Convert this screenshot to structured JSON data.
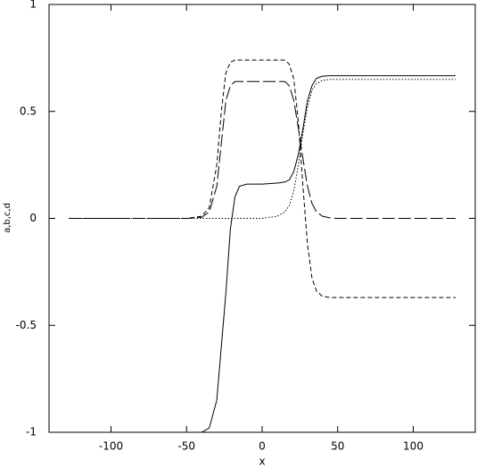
{
  "chart_data": {
    "type": "line",
    "xlabel": "x",
    "ylabel": "a,b,c,d",
    "x": [
      -128,
      -100,
      -70,
      -50,
      -40,
      -35,
      -30,
      -27,
      -24,
      -21,
      -18,
      -15,
      -10,
      0,
      10,
      15,
      18,
      21,
      24,
      27,
      30,
      33,
      36,
      40,
      45,
      50,
      70,
      100,
      128
    ],
    "series": [
      {
        "color": "#000000",
        "dash": "solid",
        "values": [
          -1,
          -1,
          -1,
          -1,
          -1,
          -0.98,
          -0.85,
          -0.6,
          -0.35,
          -0.05,
          0.1,
          0.15,
          0.16,
          0.16,
          0.165,
          0.17,
          0.18,
          0.22,
          0.3,
          0.42,
          0.55,
          0.62,
          0.655,
          0.665,
          0.667,
          0.667,
          0.667,
          0.667,
          0.667
        ]
      },
      {
        "color": "#000000",
        "dash": "short-dash",
        "values": [
          0,
          0,
          0,
          0,
          0.01,
          0.05,
          0.25,
          0.5,
          0.68,
          0.73,
          0.74,
          0.74,
          0.74,
          0.74,
          0.74,
          0.74,
          0.72,
          0.65,
          0.45,
          0.15,
          -0.12,
          -0.28,
          -0.34,
          -0.365,
          -0.37,
          -0.37,
          -0.37,
          -0.37,
          -0.37
        ]
      },
      {
        "color": "#000000",
        "dash": "long-dash",
        "values": [
          0,
          0,
          0,
          0,
          0.005,
          0.03,
          0.15,
          0.35,
          0.55,
          0.62,
          0.64,
          0.64,
          0.64,
          0.64,
          0.64,
          0.64,
          0.62,
          0.55,
          0.42,
          0.28,
          0.15,
          0.07,
          0.03,
          0.01,
          0.002,
          0,
          0,
          0,
          0
        ]
      },
      {
        "color": "#000000",
        "dash": "dotted",
        "values": [
          0,
          0,
          0,
          0,
          0,
          0,
          0,
          0,
          0,
          0,
          0,
          0,
          0,
          0,
          0.01,
          0.03,
          0.06,
          0.13,
          0.25,
          0.4,
          0.52,
          0.6,
          0.63,
          0.645,
          0.65,
          0.65,
          0.65,
          0.65,
          0.65
        ]
      }
    ],
    "xlim": [
      -141,
      141
    ],
    "ylim": [
      -1,
      1
    ],
    "xticks": [
      -100,
      -50,
      0,
      50,
      100
    ],
    "yticks": [
      -1,
      -0.5,
      0,
      0.5,
      1
    ],
    "grid": false
  }
}
